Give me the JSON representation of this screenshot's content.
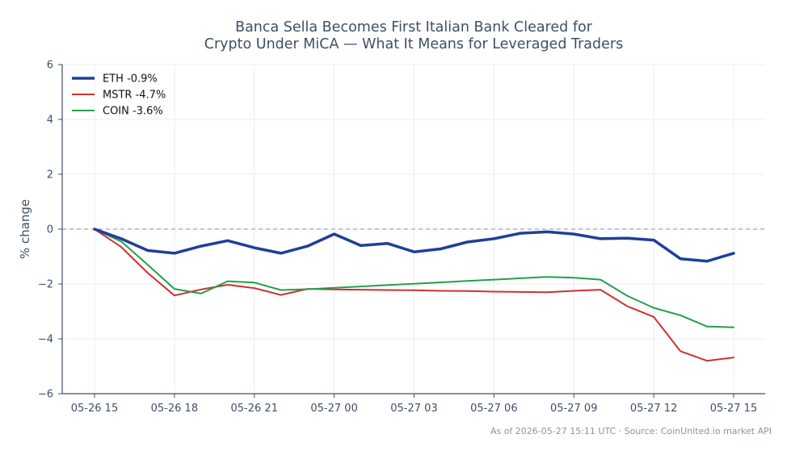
{
  "chart_data": {
    "type": "line",
    "title_lines": [
      "Banca Sella Becomes First Italian Bank Cleared for",
      "Crypto Under MiCA — What It Means for Leveraged Traders"
    ],
    "ylabel": "% change",
    "xlabel": "",
    "ylim": [
      -6,
      6
    ],
    "yticks": [
      6,
      4,
      2,
      0,
      -2,
      -4,
      -6
    ],
    "ytick_labels": [
      "6",
      "4",
      "2",
      "0",
      "−2",
      "−4",
      "−6"
    ],
    "xlim": [
      0,
      24.8
    ],
    "xticks": [
      0,
      3,
      6,
      9,
      12,
      15,
      18,
      21,
      24
    ],
    "xtick_labels": [
      "05-26 15",
      "05-26 18",
      "05-26 21",
      "05-27 00",
      "05-27 03",
      "05-27 06",
      "05-27 09",
      "05-27 12",
      "05-27 15"
    ],
    "grid": true,
    "baseline": 0,
    "legend_position": "top-left",
    "x": [
      0,
      1,
      2,
      3,
      4,
      5,
      6,
      7,
      8,
      9,
      10,
      11,
      12,
      13,
      14,
      15,
      16,
      17,
      18,
      19,
      20,
      21,
      22,
      23,
      24
    ],
    "series": [
      {
        "name": "ETH -0.9%",
        "color": "#1f3f9a",
        "width": 3.5,
        "values": [
          0.0,
          -0.35,
          -0.78,
          -0.88,
          -0.62,
          -0.42,
          -0.68,
          -0.88,
          -0.62,
          -0.18,
          -0.6,
          -0.52,
          -0.83,
          -0.72,
          -0.47,
          -0.35,
          -0.15,
          -0.1,
          -0.18,
          -0.35,
          -0.33,
          -0.4,
          -1.08,
          -1.17,
          -0.88
        ]
      },
      {
        "name": "MSTR -4.7%",
        "color": "#d03030",
        "width": 2,
        "values": [
          0.0,
          -0.65,
          -1.6,
          -2.42,
          -2.2,
          -2.03,
          -2.15,
          -2.4,
          -2.18,
          -2.2,
          -2.21,
          -2.22,
          -2.23,
          -2.25,
          -2.26,
          -2.28,
          -2.29,
          -2.3,
          -2.25,
          -2.21,
          -2.81,
          -3.2,
          -4.45,
          -4.8,
          -4.68
        ]
      },
      {
        "name": "COIN -3.6%",
        "color": "#22a04b",
        "width": 2,
        "values": [
          0.0,
          -0.45,
          -1.3,
          -2.18,
          -2.35,
          -1.9,
          -1.95,
          -2.22,
          -2.19,
          -2.14,
          -2.09,
          -2.04,
          -1.99,
          -1.94,
          -1.89,
          -1.84,
          -1.79,
          -1.74,
          -1.77,
          -1.84,
          -2.43,
          -2.87,
          -3.14,
          -3.55,
          -3.58
        ]
      }
    ]
  },
  "footer": "As of 2026-05-27 15:11 UTC · Source: CoinUnited.io market API"
}
